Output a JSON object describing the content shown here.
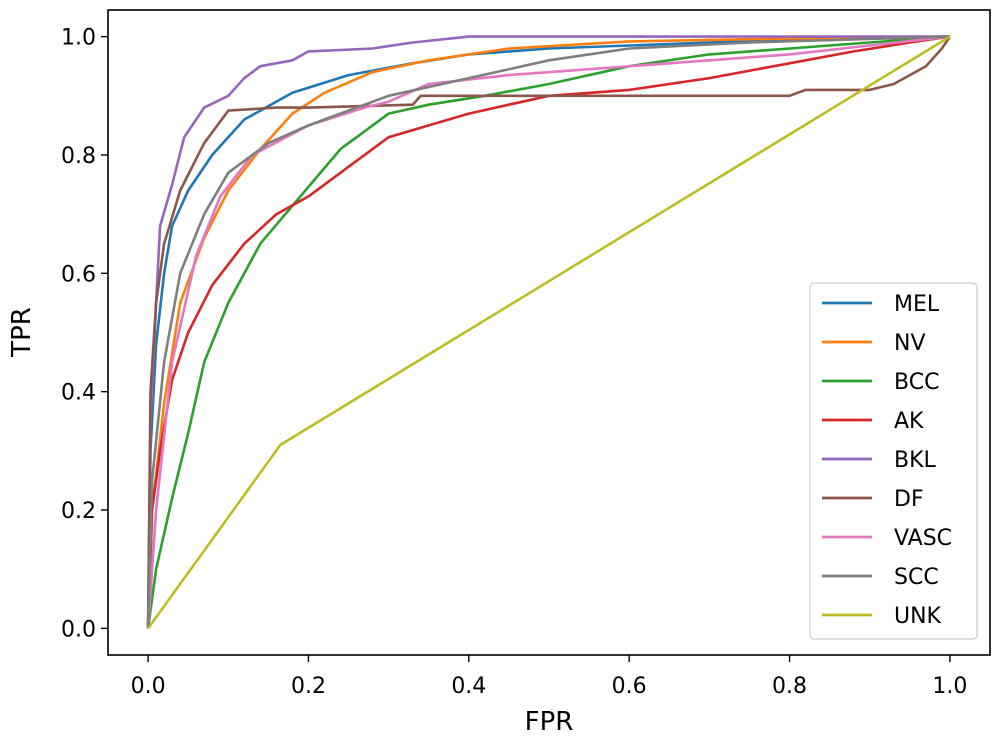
{
  "chart_data": {
    "type": "line",
    "title": "",
    "xlabel": "FPR",
    "ylabel": "TPR",
    "xlim": [
      -0.05,
      1.05
    ],
    "ylim": [
      -0.045,
      1.045
    ],
    "xticks": [
      0.0,
      0.2,
      0.4,
      0.6,
      0.8,
      1.0
    ],
    "xtick_labels": [
      "0.0",
      "0.2",
      "0.4",
      "0.6",
      "0.8",
      "1.0"
    ],
    "yticks": [
      0.0,
      0.2,
      0.4,
      0.6,
      0.8,
      1.0
    ],
    "ytick_labels": [
      "0.0",
      "0.2",
      "0.4",
      "0.6",
      "0.8",
      "1.0"
    ],
    "legend_position": "lower-right",
    "series": [
      {
        "name": "MEL",
        "color": "#1f77b4",
        "points": [
          [
            0,
            0
          ],
          [
            0.003,
            0.3
          ],
          [
            0.01,
            0.48
          ],
          [
            0.02,
            0.6
          ],
          [
            0.03,
            0.68
          ],
          [
            0.05,
            0.74
          ],
          [
            0.08,
            0.8
          ],
          [
            0.12,
            0.86
          ],
          [
            0.18,
            0.905
          ],
          [
            0.25,
            0.935
          ],
          [
            0.33,
            0.955
          ],
          [
            0.4,
            0.97
          ],
          [
            0.5,
            0.98
          ],
          [
            0.6,
            0.985
          ],
          [
            0.8,
            0.995
          ],
          [
            1,
            1
          ]
        ]
      },
      {
        "name": "NV",
        "color": "#ff7f0e",
        "points": [
          [
            0,
            0
          ],
          [
            0.005,
            0.2
          ],
          [
            0.02,
            0.38
          ],
          [
            0.04,
            0.55
          ],
          [
            0.07,
            0.66
          ],
          [
            0.1,
            0.74
          ],
          [
            0.14,
            0.81
          ],
          [
            0.18,
            0.87
          ],
          [
            0.22,
            0.905
          ],
          [
            0.28,
            0.94
          ],
          [
            0.35,
            0.96
          ],
          [
            0.45,
            0.98
          ],
          [
            0.6,
            0.992
          ],
          [
            0.8,
            0.997
          ],
          [
            1,
            1
          ]
        ]
      },
      {
        "name": "BCC",
        "color": "#2ca02c",
        "points": [
          [
            0,
            0
          ],
          [
            0.01,
            0.1
          ],
          [
            0.03,
            0.22
          ],
          [
            0.05,
            0.33
          ],
          [
            0.07,
            0.45
          ],
          [
            0.1,
            0.55
          ],
          [
            0.14,
            0.65
          ],
          [
            0.19,
            0.73
          ],
          [
            0.24,
            0.81
          ],
          [
            0.3,
            0.87
          ],
          [
            0.35,
            0.885
          ],
          [
            0.42,
            0.9
          ],
          [
            0.5,
            0.92
          ],
          [
            0.6,
            0.95
          ],
          [
            0.7,
            0.97
          ],
          [
            0.8,
            0.98
          ],
          [
            0.9,
            0.99
          ],
          [
            1,
            1
          ]
        ]
      },
      {
        "name": "AK",
        "color": "#d62728",
        "points": [
          [
            0,
            0
          ],
          [
            0.005,
            0.2
          ],
          [
            0.015,
            0.3
          ],
          [
            0.03,
            0.42
          ],
          [
            0.05,
            0.5
          ],
          [
            0.08,
            0.58
          ],
          [
            0.12,
            0.65
          ],
          [
            0.16,
            0.7
          ],
          [
            0.2,
            0.73
          ],
          [
            0.25,
            0.78
          ],
          [
            0.3,
            0.83
          ],
          [
            0.35,
            0.85
          ],
          [
            0.4,
            0.87
          ],
          [
            0.45,
            0.885
          ],
          [
            0.5,
            0.9
          ],
          [
            0.6,
            0.91
          ],
          [
            0.7,
            0.93
          ],
          [
            0.8,
            0.955
          ],
          [
            0.88,
            0.975
          ],
          [
            0.95,
            0.99
          ],
          [
            1,
            1
          ]
        ]
      },
      {
        "name": "BKL",
        "color": "#9467bd",
        "points": [
          [
            0,
            0
          ],
          [
            0.003,
            0.35
          ],
          [
            0.01,
            0.55
          ],
          [
            0.015,
            0.68
          ],
          [
            0.03,
            0.75
          ],
          [
            0.045,
            0.83
          ],
          [
            0.07,
            0.88
          ],
          [
            0.1,
            0.9
          ],
          [
            0.12,
            0.93
          ],
          [
            0.14,
            0.95
          ],
          [
            0.18,
            0.96
          ],
          [
            0.2,
            0.975
          ],
          [
            0.28,
            0.98
          ],
          [
            0.33,
            0.99
          ],
          [
            0.4,
            1.0
          ],
          [
            1,
            1
          ]
        ]
      },
      {
        "name": "DF",
        "color": "#8c564b",
        "points": [
          [
            0,
            0
          ],
          [
            0.003,
            0.4
          ],
          [
            0.01,
            0.55
          ],
          [
            0.02,
            0.65
          ],
          [
            0.04,
            0.74
          ],
          [
            0.07,
            0.82
          ],
          [
            0.1,
            0.875
          ],
          [
            0.16,
            0.88
          ],
          [
            0.2,
            0.88
          ],
          [
            0.33,
            0.885
          ],
          [
            0.34,
            0.9
          ],
          [
            0.8,
            0.9
          ],
          [
            0.82,
            0.91
          ],
          [
            0.9,
            0.91
          ],
          [
            0.93,
            0.92
          ],
          [
            0.97,
            0.95
          ],
          [
            0.99,
            0.98
          ],
          [
            1,
            1
          ]
        ]
      },
      {
        "name": "VASC",
        "color": "#e377c2",
        "points": [
          [
            0,
            0
          ],
          [
            0.01,
            0.2
          ],
          [
            0.03,
            0.45
          ],
          [
            0.06,
            0.63
          ],
          [
            0.09,
            0.73
          ],
          [
            0.13,
            0.8
          ],
          [
            0.2,
            0.85
          ],
          [
            0.27,
            0.88
          ],
          [
            0.3,
            0.89
          ],
          [
            0.35,
            0.92
          ],
          [
            0.45,
            0.935
          ],
          [
            0.55,
            0.945
          ],
          [
            0.65,
            0.955
          ],
          [
            0.8,
            0.97
          ],
          [
            0.9,
            0.985
          ],
          [
            1,
            1
          ]
        ]
      },
      {
        "name": "SCC",
        "color": "#7f7f7f",
        "points": [
          [
            0,
            0
          ],
          [
            0.005,
            0.25
          ],
          [
            0.02,
            0.45
          ],
          [
            0.04,
            0.6
          ],
          [
            0.07,
            0.7
          ],
          [
            0.1,
            0.77
          ],
          [
            0.15,
            0.82
          ],
          [
            0.2,
            0.85
          ],
          [
            0.3,
            0.9
          ],
          [
            0.4,
            0.93
          ],
          [
            0.5,
            0.96
          ],
          [
            0.6,
            0.98
          ],
          [
            0.75,
            0.99
          ],
          [
            1,
            1
          ]
        ]
      },
      {
        "name": "UNK",
        "color": "#bcbd22",
        "points": [
          [
            0,
            0
          ],
          [
            0.165,
            0.31
          ],
          [
            1,
            1
          ]
        ]
      }
    ]
  }
}
